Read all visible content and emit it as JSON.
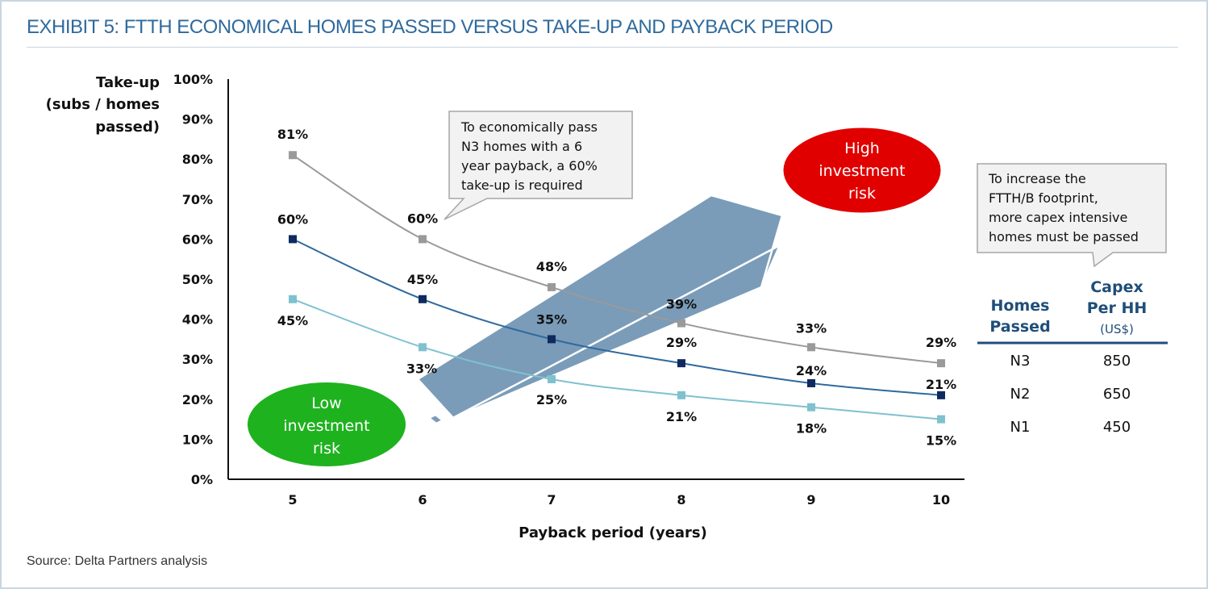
{
  "title": "EXHIBIT 5: FTTH ECONOMICAL HOMES PASSED VERSUS TAKE-UP AND PAYBACK PERIOD",
  "source": "Source: Delta Partners analysis",
  "chart_data": {
    "type": "line",
    "x": [
      5,
      6,
      7,
      8,
      9,
      10
    ],
    "xlabel": "Payback period (years)",
    "ylabel": [
      "Take-up",
      "(subs / homes",
      "passed)"
    ],
    "ylim": [
      0,
      100
    ],
    "yticks": [
      "0%",
      "10%",
      "20%",
      "30%",
      "40%",
      "50%",
      "60%",
      "70%",
      "80%",
      "90%",
      "100%"
    ],
    "grid": false,
    "series": [
      {
        "values": [
          81,
          60,
          48,
          39,
          33,
          29
        ],
        "labels": [
          "81%",
          "60%",
          "48%",
          "39%",
          "33%",
          "29%"
        ],
        "color": "#9a9a9a"
      },
      {
        "values": [
          60,
          45,
          35,
          29,
          24,
          21
        ],
        "labels": [
          "60%",
          "45%",
          "35%",
          "29%",
          "24%",
          "21%"
        ],
        "color": "#0f2a5e",
        "line_color": "#2f6a9d"
      },
      {
        "values": [
          45,
          33,
          25,
          21,
          18,
          15
        ],
        "labels": [
          "45%",
          "33%",
          "25%",
          "21%",
          "18%",
          "15%"
        ],
        "color": "#7fc1cf"
      }
    ],
    "annotations": {
      "callout_top": [
        "To economically pass",
        "N3 homes with a 6",
        "year payback, a 60%",
        "take-up is required"
      ],
      "callout_right": [
        "To increase the",
        "FTTH/B footprint,",
        "more capex intensive",
        "homes must be passed"
      ],
      "high_risk": [
        "High",
        "investment",
        "risk"
      ],
      "low_risk": [
        "Low",
        "investment",
        "risk"
      ]
    },
    "colors": {
      "high_risk": "#e00000",
      "low_risk": "#1fb21f",
      "arrow": "#6f94b4"
    },
    "table": {
      "headers": {
        "homes": [
          "Homes",
          "Passed"
        ],
        "capex": [
          "Capex",
          "Per HH"
        ],
        "capex_unit": "(US$)"
      },
      "rows": [
        {
          "homes": "N3",
          "capex": "850"
        },
        {
          "homes": "N2",
          "capex": "650"
        },
        {
          "homes": "N1",
          "capex": "450"
        }
      ]
    }
  }
}
